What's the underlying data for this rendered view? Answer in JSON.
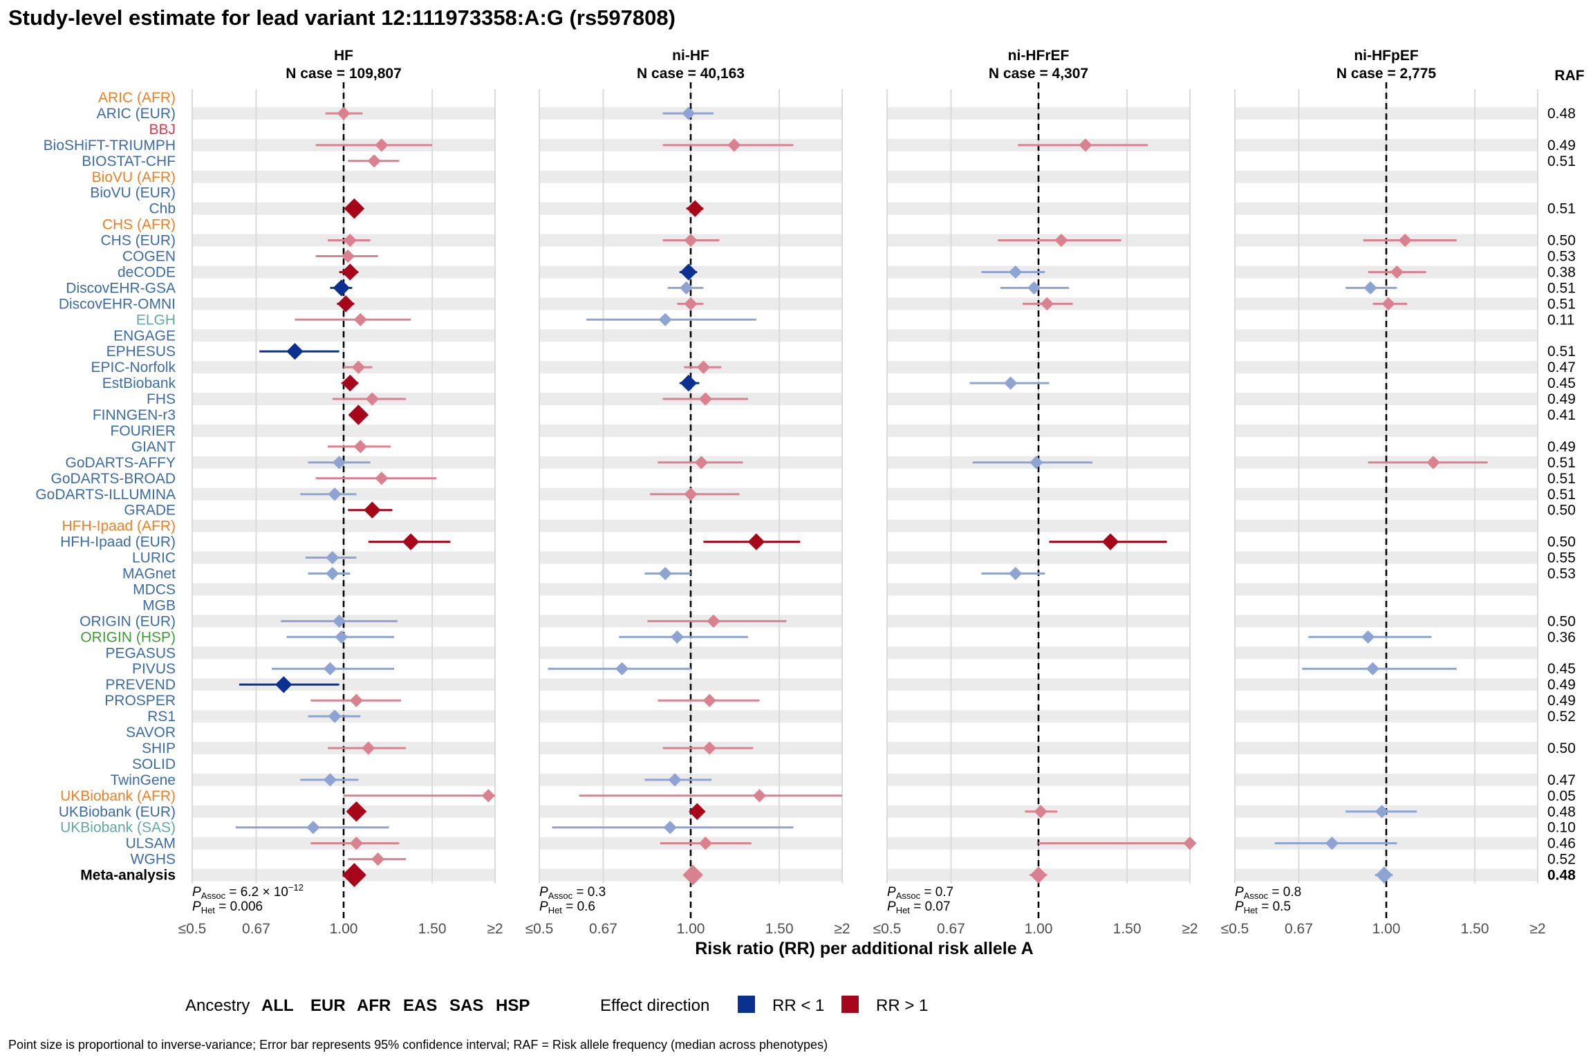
{
  "title": "Study-level estimate for lead variant 12:111973358:A:G (rs597808)",
  "raf_header": "RAF",
  "x_axis_label": "Risk ratio (RR) per additional risk allele A",
  "x_ticks": [
    "≤0.5",
    "0.67",
    "1.00",
    "1.50",
    "≥2"
  ],
  "legend": {
    "ancestry_title": "Ancestry",
    "ancestries": [
      {
        "label": "ALL",
        "color": "#000000"
      },
      {
        "label": "EUR",
        "color": "#3B6BA5"
      },
      {
        "label": "AFR",
        "color": "#F07F23"
      },
      {
        "label": "EAS",
        "color": "#DB3D4C"
      },
      {
        "label": "SAS",
        "color": "#62A8A3"
      },
      {
        "label": "HSP",
        "color": "#3E9B37"
      }
    ],
    "effect_title": "Effect direction",
    "effects": [
      {
        "label": "RR < 1",
        "color": "#0B3190"
      },
      {
        "label": "RR > 1",
        "color": "#A6051A"
      }
    ]
  },
  "footnote": "Point size is proportional to inverse-variance; Error bar represents 95% confidence interval; RAF = Risk allele frequency (median across phenotypes)",
  "colors": {
    "eur": "#3B6BA5",
    "afr": "#F07F23",
    "eas": "#DB3D4C",
    "sas": "#62A8A3",
    "hsp": "#3E9B37",
    "rr_below_1": "#0B3190",
    "rr_above_1": "#A6051A",
    "rr_below_1_faded": "#8DA4D3",
    "rr_above_1_faded": "#D9818F",
    "band": "#EBEBEB"
  },
  "chart_data": {
    "type": "forest",
    "x_scale": "log",
    "xlim": [
      0.5,
      2
    ],
    "studies": [
      {
        "name": "ARIC (AFR)",
        "ancestry": "afr",
        "raf": ""
      },
      {
        "name": "ARIC (EUR)",
        "ancestry": "eur",
        "raf": "0.48"
      },
      {
        "name": "BBJ",
        "ancestry": "eas",
        "raf": ""
      },
      {
        "name": "BioSHiFT-TRIUMPH",
        "ancestry": "eur",
        "raf": "0.49"
      },
      {
        "name": "BIOSTAT-CHF",
        "ancestry": "eur",
        "raf": "0.51"
      },
      {
        "name": "BioVU (AFR)",
        "ancestry": "afr",
        "raf": ""
      },
      {
        "name": "BioVU (EUR)",
        "ancestry": "eur",
        "raf": ""
      },
      {
        "name": "Chb",
        "ancestry": "eur",
        "raf": "0.51"
      },
      {
        "name": "CHS (AFR)",
        "ancestry": "afr",
        "raf": ""
      },
      {
        "name": "CHS (EUR)",
        "ancestry": "eur",
        "raf": "0.50"
      },
      {
        "name": "COGEN",
        "ancestry": "eur",
        "raf": "0.53"
      },
      {
        "name": "deCODE",
        "ancestry": "eur",
        "raf": "0.38"
      },
      {
        "name": "DiscovEHR-GSA",
        "ancestry": "eur",
        "raf": "0.51"
      },
      {
        "name": "DiscovEHR-OMNI",
        "ancestry": "eur",
        "raf": "0.51"
      },
      {
        "name": "ELGH",
        "ancestry": "sas",
        "raf": "0.11"
      },
      {
        "name": "ENGAGE",
        "ancestry": "eur",
        "raf": ""
      },
      {
        "name": "EPHESUS",
        "ancestry": "eur",
        "raf": "0.51"
      },
      {
        "name": "EPIC-Norfolk",
        "ancestry": "eur",
        "raf": "0.47"
      },
      {
        "name": "EstBiobank",
        "ancestry": "eur",
        "raf": "0.45"
      },
      {
        "name": "FHS",
        "ancestry": "eur",
        "raf": "0.49"
      },
      {
        "name": "FINNGEN-r3",
        "ancestry": "eur",
        "raf": "0.41"
      },
      {
        "name": "FOURIER",
        "ancestry": "eur",
        "raf": ""
      },
      {
        "name": "GIANT",
        "ancestry": "eur",
        "raf": "0.49"
      },
      {
        "name": "GoDARTS-AFFY",
        "ancestry": "eur",
        "raf": "0.51"
      },
      {
        "name": "GoDARTS-BROAD",
        "ancestry": "eur",
        "raf": "0.51"
      },
      {
        "name": "GoDARTS-ILLUMINA",
        "ancestry": "eur",
        "raf": "0.51"
      },
      {
        "name": "GRADE",
        "ancestry": "eur",
        "raf": "0.50"
      },
      {
        "name": "HFH-Ipaad (AFR)",
        "ancestry": "afr",
        "raf": ""
      },
      {
        "name": "HFH-Ipaad (EUR)",
        "ancestry": "eur",
        "raf": "0.50"
      },
      {
        "name": "LURIC",
        "ancestry": "eur",
        "raf": "0.55"
      },
      {
        "name": "MAGnet",
        "ancestry": "eur",
        "raf": "0.53"
      },
      {
        "name": "MDCS",
        "ancestry": "eur",
        "raf": ""
      },
      {
        "name": "MGB",
        "ancestry": "eur",
        "raf": ""
      },
      {
        "name": "ORIGIN (EUR)",
        "ancestry": "eur",
        "raf": "0.50"
      },
      {
        "name": "ORIGIN (HSP)",
        "ancestry": "hsp",
        "raf": "0.36"
      },
      {
        "name": "PEGASUS",
        "ancestry": "eur",
        "raf": ""
      },
      {
        "name": "PIVUS",
        "ancestry": "eur",
        "raf": "0.45"
      },
      {
        "name": "PREVEND",
        "ancestry": "eur",
        "raf": "0.49"
      },
      {
        "name": "PROSPER",
        "ancestry": "eur",
        "raf": "0.49"
      },
      {
        "name": "RS1",
        "ancestry": "eur",
        "raf": "0.52"
      },
      {
        "name": "SAVOR",
        "ancestry": "eur",
        "raf": ""
      },
      {
        "name": "SHIP",
        "ancestry": "eur",
        "raf": "0.50"
      },
      {
        "name": "SOLID",
        "ancestry": "eur",
        "raf": ""
      },
      {
        "name": "TwinGene",
        "ancestry": "eur",
        "raf": "0.47"
      },
      {
        "name": "UKBiobank (AFR)",
        "ancestry": "afr",
        "raf": "0.05"
      },
      {
        "name": "UKBiobank (EUR)",
        "ancestry": "eur",
        "raf": "0.48"
      },
      {
        "name": "UKBiobank (SAS)",
        "ancestry": "sas",
        "raf": "0.10"
      },
      {
        "name": "ULSAM",
        "ancestry": "eur",
        "raf": "0.46"
      },
      {
        "name": "WGHS",
        "ancestry": "eur",
        "raf": "0.52"
      },
      {
        "name": "Meta-analysis",
        "ancestry": "all",
        "raf": "0.48"
      }
    ],
    "panels": [
      {
        "title": "HF",
        "subtitle": "N case = 109,807",
        "p_assoc": "= 6.2 × 10",
        "p_assoc_exp": "−12",
        "p_het": "= 0.006",
        "points": [
          {
            "study": "ARIC (EUR)",
            "rr": 1.0,
            "lo": 0.92,
            "hi": 1.09,
            "w": 1
          },
          {
            "study": "BioSHiFT-TRIUMPH",
            "rr": 1.19,
            "lo": 0.88,
            "hi": 1.5,
            "w": 1
          },
          {
            "study": "BIOSTAT-CHF",
            "rr": 1.15,
            "lo": 1.02,
            "hi": 1.29,
            "w": 1
          },
          {
            "study": "Chb",
            "rr": 1.05,
            "lo": 1.02,
            "hi": 1.08,
            "w": 3
          },
          {
            "study": "CHS (EUR)",
            "rr": 1.03,
            "lo": 0.93,
            "hi": 1.13,
            "w": 1
          },
          {
            "study": "COGEN",
            "rr": 1.02,
            "lo": 0.88,
            "hi": 1.17,
            "w": 1
          },
          {
            "study": "deCODE",
            "rr": 1.03,
            "lo": 0.98,
            "hi": 1.07,
            "w": 2
          },
          {
            "study": "DiscovEHR-GSA",
            "rr": 0.99,
            "lo": 0.94,
            "hi": 1.04,
            "w": 2
          },
          {
            "study": "DiscovEHR-OMNI",
            "rr": 1.01,
            "lo": 0.97,
            "hi": 1.05,
            "w": 2
          },
          {
            "study": "ELGH",
            "rr": 1.08,
            "lo": 0.8,
            "hi": 1.36,
            "w": 1
          },
          {
            "study": "EPHESUS",
            "rr": 0.8,
            "lo": 0.68,
            "hi": 0.98,
            "w": 2
          },
          {
            "study": "EPIC-Norfolk",
            "rr": 1.07,
            "lo": 1.0,
            "hi": 1.14,
            "w": 1
          },
          {
            "study": "EstBiobank",
            "rr": 1.03,
            "lo": 0.99,
            "hi": 1.07,
            "w": 2
          },
          {
            "study": "FHS",
            "rr": 1.14,
            "lo": 0.95,
            "hi": 1.33,
            "w": 1
          },
          {
            "study": "FINNGEN-r3",
            "rr": 1.07,
            "lo": 1.04,
            "hi": 1.1,
            "w": 3
          },
          {
            "study": "GIANT",
            "rr": 1.08,
            "lo": 0.93,
            "hi": 1.24,
            "w": 1
          },
          {
            "study": "GoDARTS-AFFY",
            "rr": 0.98,
            "lo": 0.85,
            "hi": 1.13,
            "w": 1
          },
          {
            "study": "GoDARTS-BROAD",
            "rr": 1.19,
            "lo": 0.88,
            "hi": 1.53,
            "w": 1
          },
          {
            "study": "GoDARTS-ILLUMINA",
            "rr": 0.96,
            "lo": 0.82,
            "hi": 1.06,
            "w": 1
          },
          {
            "study": "GRADE",
            "rr": 1.14,
            "lo": 1.02,
            "hi": 1.25,
            "w": 2
          },
          {
            "study": "HFH-Ipaad (EUR)",
            "rr": 1.36,
            "lo": 1.12,
            "hi": 1.63,
            "w": 2
          },
          {
            "study": "LURIC",
            "rr": 0.95,
            "lo": 0.84,
            "hi": 1.06,
            "w": 1
          },
          {
            "study": "MAGnet",
            "rr": 0.95,
            "lo": 0.85,
            "hi": 1.03,
            "w": 1
          },
          {
            "study": "ORIGIN (EUR)",
            "rr": 0.98,
            "lo": 0.75,
            "hi": 1.28,
            "w": 1
          },
          {
            "study": "ORIGIN (HSP)",
            "rr": 0.99,
            "lo": 0.77,
            "hi": 1.26,
            "w": 1
          },
          {
            "study": "PIVUS",
            "rr": 0.94,
            "lo": 0.72,
            "hi": 1.26,
            "w": 1
          },
          {
            "study": "PREVEND",
            "rr": 0.76,
            "lo": 0.62,
            "hi": 0.98,
            "w": 2
          },
          {
            "study": "PROSPER",
            "rr": 1.06,
            "lo": 0.86,
            "hi": 1.3,
            "w": 1
          },
          {
            "study": "RS1",
            "rr": 0.96,
            "lo": 0.85,
            "hi": 1.08,
            "w": 1
          },
          {
            "study": "SHIP",
            "rr": 1.12,
            "lo": 0.93,
            "hi": 1.33,
            "w": 1
          },
          {
            "study": "TwinGene",
            "rr": 0.94,
            "lo": 0.82,
            "hi": 1.07,
            "w": 1
          },
          {
            "study": "UKBiobank (AFR)",
            "rr": 1.94,
            "lo": 1.0,
            "hi": 2.0,
            "w": 1
          },
          {
            "study": "UKBiobank (EUR)",
            "rr": 1.06,
            "lo": 1.04,
            "hi": 1.08,
            "w": 3
          },
          {
            "study": "UKBiobank (SAS)",
            "rr": 0.87,
            "lo": 0.61,
            "hi": 1.23,
            "w": 1
          },
          {
            "study": "ULSAM",
            "rr": 1.06,
            "lo": 0.86,
            "hi": 1.29,
            "w": 1
          },
          {
            "study": "WGHS",
            "rr": 1.17,
            "lo": 1.02,
            "hi": 1.33,
            "w": 1
          },
          {
            "study": "Meta-analysis",
            "rr": 1.05,
            "lo": 1.03,
            "hi": 1.07,
            "w": 4
          }
        ]
      },
      {
        "title": "ni-HF",
        "subtitle": "N case = 40,163",
        "p_assoc": "= 0.3",
        "p_assoc_exp": "",
        "p_het": "= 0.6",
        "points": [
          {
            "study": "ARIC (EUR)",
            "rr": 0.99,
            "lo": 0.88,
            "hi": 1.11,
            "w": 1
          },
          {
            "study": "BioSHiFT-TRIUMPH",
            "rr": 1.22,
            "lo": 0.88,
            "hi": 1.6,
            "w": 1
          },
          {
            "study": "Chb",
            "rr": 1.02,
            "lo": 0.98,
            "hi": 1.06,
            "w": 2
          },
          {
            "study": "CHS (EUR)",
            "rr": 1.0,
            "lo": 0.88,
            "hi": 1.14,
            "w": 1
          },
          {
            "study": "deCODE",
            "rr": 0.99,
            "lo": 0.95,
            "hi": 1.03,
            "w": 2
          },
          {
            "study": "DiscovEHR-GSA",
            "rr": 0.98,
            "lo": 0.9,
            "hi": 1.06,
            "w": 1
          },
          {
            "study": "DiscovEHR-OMNI",
            "rr": 1.0,
            "lo": 0.94,
            "hi": 1.06,
            "w": 1
          },
          {
            "study": "ELGH",
            "rr": 0.89,
            "lo": 0.62,
            "hi": 1.35,
            "w": 1
          },
          {
            "study": "EPIC-Norfolk",
            "rr": 1.06,
            "lo": 0.97,
            "hi": 1.15,
            "w": 1
          },
          {
            "study": "EstBiobank",
            "rr": 0.99,
            "lo": 0.95,
            "hi": 1.04,
            "w": 2
          },
          {
            "study": "FHS",
            "rr": 1.07,
            "lo": 0.88,
            "hi": 1.3,
            "w": 1
          },
          {
            "study": "GoDARTS-AFFY",
            "rr": 1.05,
            "lo": 0.86,
            "hi": 1.27,
            "w": 1
          },
          {
            "study": "GoDARTS-ILLUMINA",
            "rr": 1.0,
            "lo": 0.83,
            "hi": 1.25,
            "w": 1
          },
          {
            "study": "HFH-Ipaad (EUR)",
            "rr": 1.35,
            "lo": 1.06,
            "hi": 1.65,
            "w": 2
          },
          {
            "study": "MAGnet",
            "rr": 0.89,
            "lo": 0.81,
            "hi": 1.0,
            "w": 1
          },
          {
            "study": "ORIGIN (EUR)",
            "rr": 1.11,
            "lo": 0.82,
            "hi": 1.55,
            "w": 1
          },
          {
            "study": "ORIGIN (HSP)",
            "rr": 0.94,
            "lo": 0.72,
            "hi": 1.3,
            "w": 1
          },
          {
            "study": "PIVUS",
            "rr": 0.73,
            "lo": 0.52,
            "hi": 1.0,
            "w": 1
          },
          {
            "study": "PROSPER",
            "rr": 1.09,
            "lo": 0.86,
            "hi": 1.37,
            "w": 1
          },
          {
            "study": "SHIP",
            "rr": 1.09,
            "lo": 0.88,
            "hi": 1.33,
            "w": 1
          },
          {
            "study": "TwinGene",
            "rr": 0.93,
            "lo": 0.81,
            "hi": 1.1,
            "w": 1
          },
          {
            "study": "UKBiobank (AFR)",
            "rr": 1.37,
            "lo": 0.6,
            "hi": 2.0,
            "w": 1
          },
          {
            "study": "UKBiobank (EUR)",
            "rr": 1.03,
            "lo": 1.0,
            "hi": 1.06,
            "w": 2
          },
          {
            "study": "UKBiobank (SAS)",
            "rr": 0.91,
            "lo": 0.53,
            "hi": 1.6,
            "w": 1
          },
          {
            "study": "ULSAM",
            "rr": 1.07,
            "lo": 0.87,
            "hi": 1.32,
            "w": 1
          },
          {
            "study": "Meta-analysis",
            "rr": 1.01,
            "lo": 0.98,
            "hi": 1.03,
            "w": 3
          }
        ]
      },
      {
        "title": "ni-HFrEF",
        "subtitle": "N case = 4,307",
        "p_assoc": "= 0.7",
        "p_assoc_exp": "",
        "p_het": "= 0.07",
        "points": [
          {
            "study": "BioSHiFT-TRIUMPH",
            "rr": 1.24,
            "lo": 0.91,
            "hi": 1.65,
            "w": 1
          },
          {
            "study": "CHS (EUR)",
            "rr": 1.11,
            "lo": 0.83,
            "hi": 1.46,
            "w": 1
          },
          {
            "study": "deCODE",
            "rr": 0.9,
            "lo": 0.77,
            "hi": 1.03,
            "w": 1
          },
          {
            "study": "DiscovEHR-GSA",
            "rr": 0.98,
            "lo": 0.84,
            "hi": 1.15,
            "w": 1
          },
          {
            "study": "DiscovEHR-OMNI",
            "rr": 1.04,
            "lo": 0.93,
            "hi": 1.17,
            "w": 1
          },
          {
            "study": "EstBiobank",
            "rr": 0.88,
            "lo": 0.73,
            "hi": 1.05,
            "w": 1
          },
          {
            "study": "GoDARTS-AFFY",
            "rr": 0.99,
            "lo": 0.74,
            "hi": 1.28,
            "w": 1
          },
          {
            "study": "HFH-Ipaad (EUR)",
            "rr": 1.39,
            "lo": 1.05,
            "hi": 1.8,
            "w": 2
          },
          {
            "study": "MAGnet",
            "rr": 0.9,
            "lo": 0.77,
            "hi": 1.03,
            "w": 1
          },
          {
            "study": "UKBiobank (EUR)",
            "rr": 1.01,
            "lo": 0.94,
            "hi": 1.09,
            "w": 1
          },
          {
            "study": "ULSAM",
            "rr": 2.0,
            "lo": 1.0,
            "hi": 2.0,
            "w": 1
          },
          {
            "study": "Meta-analysis",
            "rr": 1.0,
            "lo": 0.96,
            "hi": 1.04,
            "w": 2
          }
        ]
      },
      {
        "title": "ni-HFpEF",
        "subtitle": "N case = 2,775",
        "p_assoc": "= 0.8",
        "p_assoc_exp": "",
        "p_het": "= 0.5",
        "points": [
          {
            "study": "CHS (EUR)",
            "rr": 1.09,
            "lo": 0.9,
            "hi": 1.38,
            "w": 1
          },
          {
            "study": "deCODE",
            "rr": 1.05,
            "lo": 0.92,
            "hi": 1.2,
            "w": 1
          },
          {
            "study": "DiscovEHR-GSA",
            "rr": 0.93,
            "lo": 0.83,
            "hi": 1.05,
            "w": 1
          },
          {
            "study": "DiscovEHR-OMNI",
            "rr": 1.01,
            "lo": 0.94,
            "hi": 1.1,
            "w": 1
          },
          {
            "study": "GoDARTS-AFFY",
            "rr": 1.24,
            "lo": 0.92,
            "hi": 1.59,
            "w": 1
          },
          {
            "study": "ORIGIN (HSP)",
            "rr": 0.92,
            "lo": 0.7,
            "hi": 1.23,
            "w": 1
          },
          {
            "study": "PIVUS",
            "rr": 0.94,
            "lo": 0.68,
            "hi": 1.38,
            "w": 1
          },
          {
            "study": "UKBiobank (EUR)",
            "rr": 0.98,
            "lo": 0.83,
            "hi": 1.15,
            "w": 1
          },
          {
            "study": "ULSAM",
            "rr": 0.78,
            "lo": 0.6,
            "hi": 1.05,
            "w": 1
          },
          {
            "study": "Meta-analysis",
            "rr": 0.99,
            "lo": 0.95,
            "hi": 1.03,
            "w": 2
          }
        ]
      }
    ]
  }
}
